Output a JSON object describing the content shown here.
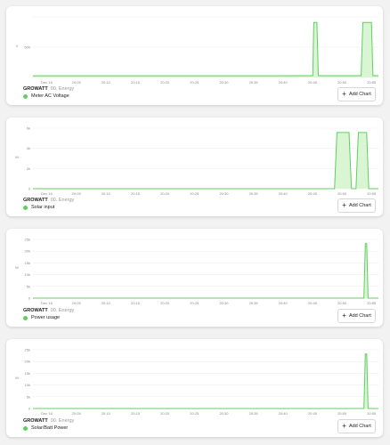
{
  "panels": [
    {
      "brand": "GROWATT",
      "source": "00. Energy",
      "metric": "Meter AC Voltage",
      "add_label": "Add Chart",
      "unit": "V",
      "yticks": [
        "",
        "500",
        ""
      ],
      "xticks": [
        "Dec 16",
        "20:05",
        "20:10",
        "20:15",
        "20:20",
        "20:25",
        "20:30",
        "20:35",
        "20:40",
        "20:45",
        "20:50",
        "20:55"
      ],
      "chart_data": {
        "type": "area",
        "series": [
          {
            "values": [
              [
                0,
                30
              ],
              [
                0.1,
                30
              ],
              [
                0.2,
                30
              ],
              [
                0.3,
                31
              ],
              [
                0.4,
                31
              ],
              [
                0.5,
                31
              ],
              [
                0.6,
                31
              ],
              [
                0.7,
                31
              ],
              [
                0.8,
                32
              ],
              [
                0.81,
                32
              ],
              [
                0.813,
                1000
              ],
              [
                0.822,
                1000
              ],
              [
                0.826,
                32
              ],
              [
                0.95,
                32
              ],
              [
                0.955,
                1000
              ],
              [
                0.98,
                1000
              ],
              [
                0.984,
                32
              ],
              [
                1,
                32
              ]
            ]
          }
        ],
        "ymax": 1100
      }
    },
    {
      "brand": "GROWATT",
      "source": "00. Energy",
      "metric": "Solar input",
      "add_label": "Add Chart",
      "unit": "W",
      "yticks": [
        "6k",
        "4k",
        "2k",
        "0"
      ],
      "xticks": [
        "Dec 16",
        "20:05",
        "20:10",
        "20:15",
        "20:20",
        "20:25",
        "20:30",
        "20:35",
        "20:40",
        "20:45",
        "20:50",
        "20:55"
      ],
      "chart_data": {
        "type": "area",
        "series": [
          {
            "values": [
              [
                0,
                0
              ],
              [
                0.873,
                0
              ],
              [
                0.88,
                6500
              ],
              [
                0.915,
                6500
              ],
              [
                0.922,
                0
              ],
              [
                0.935,
                0
              ],
              [
                0.942,
                6500
              ],
              [
                0.966,
                6500
              ],
              [
                0.972,
                0
              ],
              [
                1,
                0
              ]
            ]
          }
        ],
        "ymax": 7000
      }
    },
    {
      "brand": "GROWATT",
      "source": "00. Energy",
      "metric": "Power usage",
      "add_label": "Add Chart",
      "unit": "W",
      "yticks": [
        "25k",
        "20k",
        "15k",
        "10k",
        "5k",
        "0"
      ],
      "xticks": [
        "Dec 16",
        "20:05",
        "20:10",
        "20:15",
        "20:20",
        "20:25",
        "20:30",
        "20:35",
        "20:40",
        "20:45",
        "20:50",
        "20:55"
      ],
      "chart_data": {
        "type": "area",
        "series": [
          {
            "values": [
              [
                0,
                0
              ],
              [
                0.958,
                0
              ],
              [
                0.962,
                26000
              ],
              [
                0.966,
                26000
              ],
              [
                0.97,
                0
              ],
              [
                1,
                0
              ]
            ]
          }
        ],
        "ymax": 28000
      }
    },
    {
      "brand": "GROWATT",
      "source": "00. Energy",
      "metric": "Solar/Batt Power",
      "add_label": "Add Chart",
      "unit": "W",
      "yticks": [
        "25k",
        "20k",
        "15k",
        "10k",
        "5k",
        "0"
      ],
      "xticks": [
        "Dec 16",
        "20:05",
        "20:10",
        "20:15",
        "20:20",
        "20:25",
        "20:30",
        "20:35",
        "20:40",
        "20:45",
        "20:50",
        "20:55"
      ],
      "chart_data": {
        "type": "area",
        "series": [
          {
            "values": [
              [
                0,
                0
              ],
              [
                0.958,
                0
              ],
              [
                0.962,
                26000
              ],
              [
                0.966,
                26000
              ],
              [
                0.97,
                0
              ],
              [
                1,
                0
              ]
            ]
          }
        ],
        "ymax": 28000
      }
    }
  ],
  "colors": {
    "line": "#5fcf5f",
    "fill": "#d9f5d4",
    "grid": "#eeeeee"
  }
}
